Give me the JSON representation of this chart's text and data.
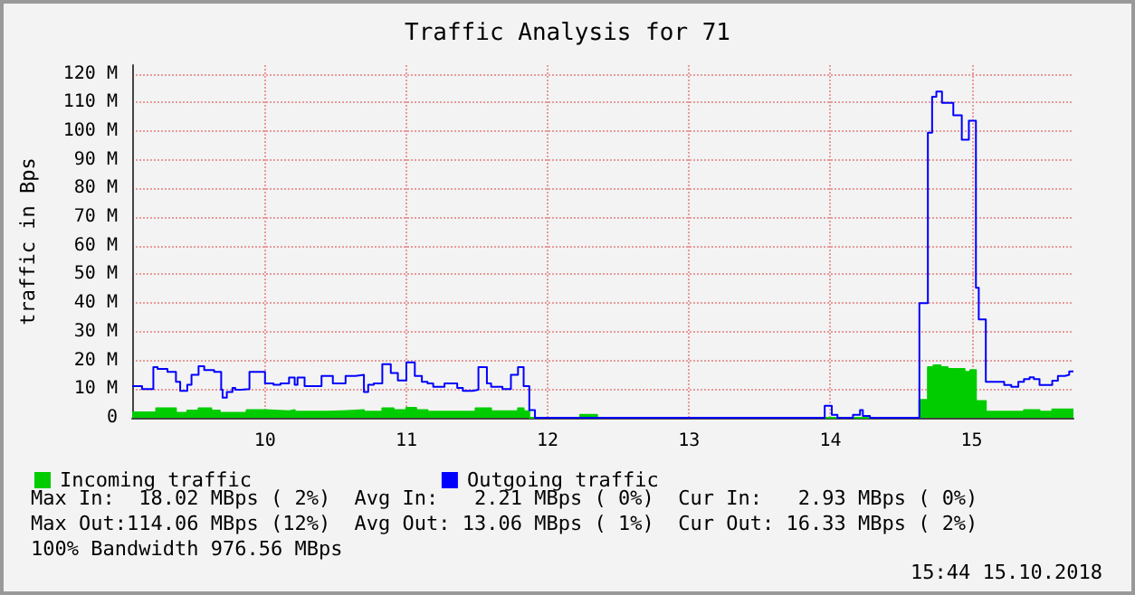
{
  "chart_data": {
    "type": "step",
    "title": "Traffic Analysis for 71",
    "ylabel": "traffic in Bps",
    "xlim": [
      9.06,
      15.72
    ],
    "xticks": [
      10,
      11,
      12,
      13,
      14,
      15
    ],
    "ylim": [
      0,
      123
    ],
    "yticks": [
      0,
      {
        "value": 10,
        "label": "10 M"
      },
      {
        "value": 20,
        "label": "20 M"
      },
      {
        "value": 30,
        "label": "30 M"
      },
      {
        "value": 40,
        "label": "40 M"
      },
      {
        "value": 50,
        "label": "50 M"
      },
      {
        "value": 60,
        "label": "60 M"
      },
      {
        "value": 70,
        "label": "70 M"
      },
      {
        "value": 80,
        "label": "80 M"
      },
      {
        "value": 90,
        "label": "90 M"
      },
      {
        "value": 100,
        "label": "100 M"
      },
      {
        "value": 110,
        "label": "110 M"
      },
      {
        "value": 120,
        "label": "120 M"
      }
    ],
    "grid": true,
    "legend": "bottom",
    "marker": "none",
    "series": [
      {
        "name": "Incoming traffic",
        "type": "area",
        "color": "#00cc00",
        "x": [
          9.06,
          9.23,
          9.37,
          9.45,
          9.53,
          9.62,
          9.68,
          9.87,
          10.0,
          10.17,
          10.21,
          10.43,
          10.55,
          10.7,
          10.83,
          10.91,
          11.0,
          11.07,
          11.15,
          11.49,
          11.6,
          11.79,
          11.83,
          11.87,
          12.23,
          12.35,
          14.63,
          14.69,
          14.73,
          14.78,
          14.83,
          14.95,
          14.99,
          15.03,
          15.1,
          15.37,
          15.48,
          15.57,
          15.72
        ],
        "values": [
          1.9,
          3.3,
          1.7,
          2.5,
          3.3,
          2.5,
          1.7,
          2.7,
          2.3,
          2.7,
          2.1,
          2.3,
          2.7,
          2.1,
          3.3,
          2.7,
          3.5,
          2.7,
          2.1,
          3.3,
          2.3,
          3.3,
          2.3,
          0,
          1,
          0,
          6.2,
          17.7,
          18.3,
          17.7,
          17,
          16,
          16.6,
          5.8,
          2.1,
          2.7,
          2.1,
          2.9,
          2.9
        ]
      },
      {
        "name": "Outgoing traffic",
        "type": "step",
        "color": "#0000ff",
        "x": [
          9.06,
          9.13,
          9.21,
          9.24,
          9.31,
          9.37,
          9.4,
          9.45,
          9.48,
          9.53,
          9.57,
          9.64,
          9.69,
          9.7,
          9.73,
          9.77,
          9.79,
          9.83,
          9.89,
          10.0,
          10.06,
          10.11,
          10.17,
          10.21,
          10.23,
          10.28,
          10.4,
          10.48,
          10.57,
          10.64,
          10.7,
          10.73,
          10.77,
          10.83,
          10.89,
          10.94,
          11.0,
          11.06,
          11.11,
          11.15,
          11.19,
          11.27,
          11.36,
          11.4,
          11.47,
          11.51,
          11.57,
          11.6,
          11.68,
          11.74,
          11.79,
          11.83,
          11.87,
          11.91,
          13.96,
          14.01,
          14.05,
          14.16,
          14.21,
          14.23,
          14.28,
          14.63,
          14.69,
          14.72,
          14.75,
          14.79,
          14.87,
          14.93,
          14.98,
          15.03,
          15.05,
          15.1,
          15.23,
          15.28,
          15.33,
          15.37,
          15.41,
          15.44,
          15.48,
          15.57,
          15.61,
          15.66,
          15.69,
          15.72
        ],
        "values": [
          11,
          10,
          17.7,
          17,
          16,
          12.5,
          9.4,
          11.5,
          15,
          18,
          16.6,
          16,
          9.8,
          7,
          9,
          10.4,
          9.8,
          10,
          16,
          12,
          11.5,
          12,
          14,
          11.5,
          14,
          11,
          14.6,
          12,
          14.6,
          15,
          9,
          11.5,
          12,
          18.7,
          15.6,
          13,
          19.3,
          14.6,
          12.5,
          12,
          10.8,
          12,
          10.4,
          9.4,
          9.8,
          17.7,
          12,
          10.8,
          10,
          15,
          17.7,
          11,
          2.7,
          0,
          4.2,
          1,
          0,
          1,
          2.7,
          0.6,
          0,
          40,
          99.4,
          112,
          113.8,
          109.8,
          105.5,
          97,
          103.6,
          45.3,
          34.3,
          12.5,
          11.4,
          10.8,
          12.5,
          13.5,
          14.1,
          13.5,
          11.4,
          12.9,
          14.6,
          15,
          16.2,
          16.2
        ]
      }
    ],
    "annotations": [
      "Max In:  18.02 MBps ( 2%)  Avg In:   2.21 MBps ( 0%)  Cur In:   2.93 MBps ( 0%)",
      "Max Out:114.06 MBps (12%)  Avg Out: 13.06 MBps ( 1%)  Cur Out: 16.33 MBps ( 2%)",
      "100% Bandwidth 976.56 MBps",
      "15:44 15.10.2018"
    ]
  }
}
